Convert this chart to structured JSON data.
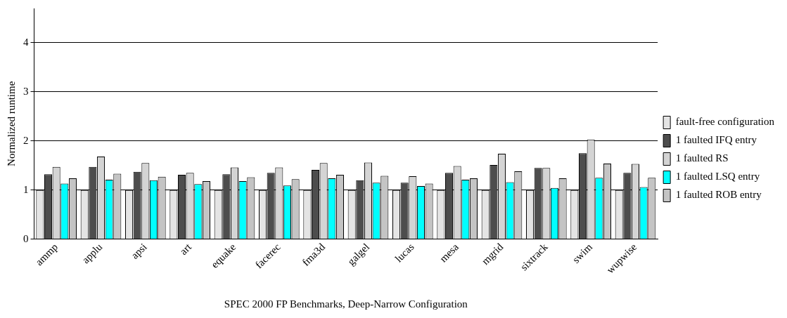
{
  "chart_data": {
    "type": "bar",
    "xlabel": "SPEC 2000 FP Benchmarks, Deep-Narrow Configuration",
    "ylabel": "Normalized runtime",
    "categories": [
      "ammp",
      "applu",
      "apsi",
      "art",
      "equake",
      "facerec",
      "fma3d",
      "galgel",
      "lucas",
      "mesa",
      "mgrid",
      "sixtrack",
      "swim",
      "wupwise"
    ],
    "series": [
      {
        "name": "fault-free configuration",
        "color": "#e4e4e4",
        "values": [
          1,
          1,
          1,
          1,
          1,
          1,
          1,
          1,
          1,
          1,
          1,
          1,
          1,
          1
        ]
      },
      {
        "name": "1 faulted IFQ entry",
        "color": "#4d4d4d",
        "values": [
          1.32,
          1.47,
          1.37,
          1.31,
          1.32,
          1.35,
          1.41,
          1.2,
          1.15,
          1.35,
          1.51,
          1.45,
          1.75,
          1.35
        ]
      },
      {
        "name": "1 faulted RS",
        "color": "#d4d4d4",
        "values": [
          1.47,
          1.68,
          1.55,
          1.35,
          1.46,
          1.46,
          1.55,
          1.56,
          1.28,
          1.49,
          1.74,
          1.45,
          2.03,
          1.53
        ]
      },
      {
        "name": "1 faulted LSQ entry",
        "color": "#00ffff",
        "values": [
          1.13,
          1.21,
          1.2,
          1.12,
          1.18,
          1.09,
          1.24,
          1.15,
          1.08,
          1.21,
          1.16,
          1.04,
          1.25,
          1.06
        ]
      },
      {
        "name": "1 faulted ROB entry",
        "color": "#c4c4c4",
        "values": [
          1.24,
          1.33,
          1.27,
          1.18,
          1.26,
          1.22,
          1.31,
          1.29,
          1.13,
          1.24,
          1.38,
          1.24,
          1.54,
          1.25
        ]
      }
    ],
    "ylim": [
      0,
      4.7
    ],
    "yticks": [
      0,
      1,
      2,
      3,
      4
    ],
    "grid": "y",
    "legend": "right"
  }
}
